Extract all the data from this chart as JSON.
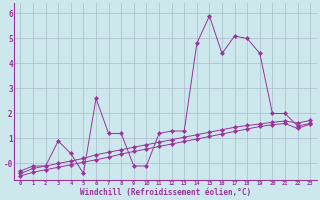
{
  "hours": [
    0,
    1,
    2,
    3,
    4,
    5,
    6,
    7,
    8,
    9,
    10,
    11,
    12,
    13,
    14,
    15,
    16,
    17,
    18,
    19,
    20,
    21,
    22,
    23
  ],
  "windchill": [
    -0.3,
    -0.1,
    -0.1,
    0.9,
    0.4,
    -0.4,
    2.6,
    1.2,
    1.2,
    -0.1,
    -0.1,
    1.2,
    1.3,
    1.3,
    4.8,
    5.9,
    4.4,
    5.1,
    5.0,
    4.4,
    2.0,
    2.0,
    1.5,
    1.6
  ],
  "line2": [
    -0.4,
    -0.2,
    -0.1,
    0.0,
    0.1,
    0.2,
    0.35,
    0.45,
    0.55,
    0.65,
    0.75,
    0.85,
    0.95,
    1.05,
    1.15,
    1.25,
    1.35,
    1.45,
    1.52,
    1.58,
    1.65,
    1.7,
    1.62,
    1.72
  ],
  "line3": [
    -0.5,
    -0.35,
    -0.25,
    -0.15,
    -0.05,
    0.05,
    0.15,
    0.25,
    0.38,
    0.48,
    0.58,
    0.68,
    0.78,
    0.88,
    0.98,
    1.08,
    1.18,
    1.28,
    1.38,
    1.48,
    1.55,
    1.6,
    1.4,
    1.58
  ],
  "line_color": "#993399",
  "bg_color": "#cce8ec",
  "grid_color": "#aabbcc",
  "yticks": [
    0,
    1,
    2,
    3,
    4,
    5,
    6
  ],
  "ylabels": [
    "-0",
    "1",
    "2",
    "3",
    "4",
    "5",
    "6"
  ],
  "xlabel": "Windchill (Refroidissement éolien,°C)",
  "ylim": [
    -0.65,
    6.4
  ],
  "xlim": [
    -0.5,
    23.5
  ]
}
